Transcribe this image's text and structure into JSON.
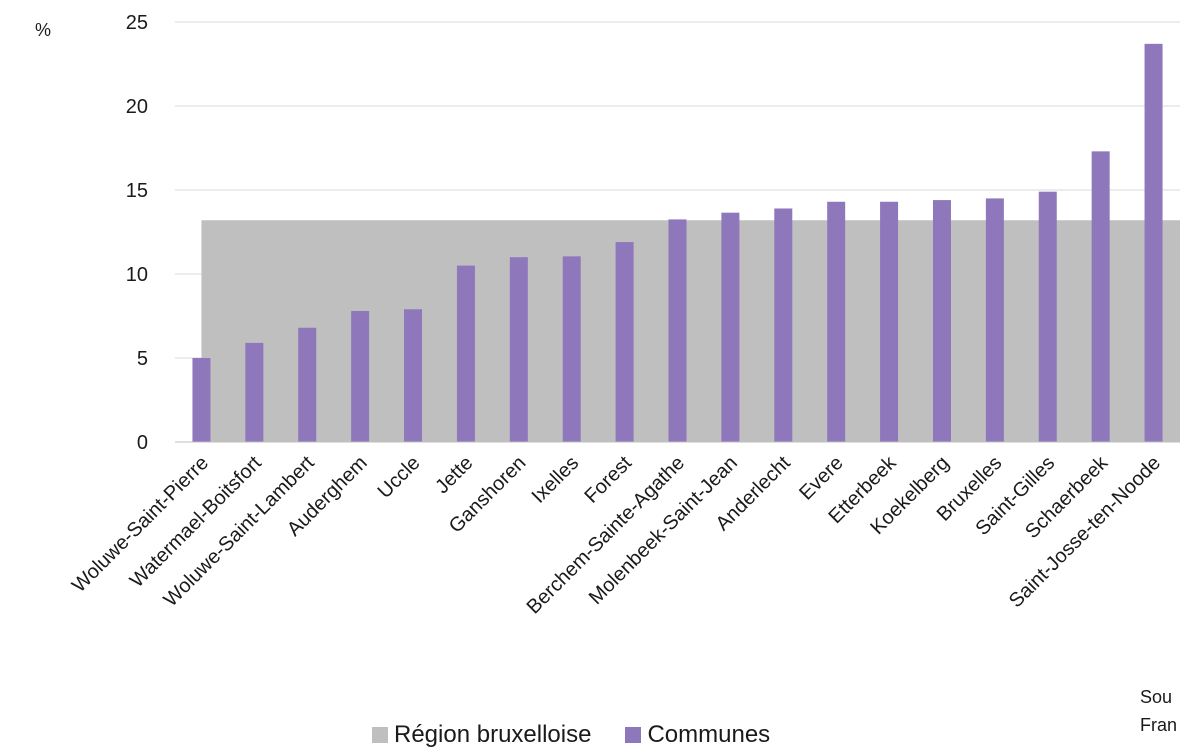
{
  "chart_data": {
    "type": "bar",
    "unit_label": "%",
    "categories": [
      "Woluwe-Saint-Pierre",
      "Watermael-Boitsfort",
      "Woluwe-Saint-Lambert",
      "Auderghem",
      "Uccle",
      "Jette",
      "Ganshoren",
      "Ixelles",
      "Forest",
      "Berchem-Sainte-Agathe",
      "Molenbeek-Saint-Jean",
      "Anderlecht",
      "Evere",
      "Etterbeek",
      "Koekelberg",
      "Bruxelles",
      "Saint-Gilles",
      "Schaerbeek",
      "Saint-Josse-ten-Noode"
    ],
    "series": [
      {
        "name": "Région bruxelloise",
        "kind": "area",
        "color": "#bfbfbf",
        "value": 13.2
      },
      {
        "name": "Communes",
        "kind": "bar",
        "color": "#8e77bb",
        "values": [
          5.0,
          5.9,
          6.8,
          7.8,
          7.9,
          10.5,
          11.0,
          11.05,
          11.9,
          13.25,
          13.65,
          13.9,
          14.3,
          14.3,
          14.4,
          14.5,
          14.9,
          17.3,
          23.7
        ]
      }
    ],
    "ylim": [
      0,
      25
    ],
    "yticks": [
      0,
      5,
      10,
      15,
      20,
      25
    ],
    "grid": true,
    "legend_position": "bottom"
  },
  "legend": {
    "items": [
      {
        "label": "Région bruxelloise",
        "color": "#bfbfbf"
      },
      {
        "label": "Communes",
        "color": "#8e77bb"
      }
    ]
  },
  "source_note": {
    "line1": "Sou",
    "line2": "Fran"
  }
}
